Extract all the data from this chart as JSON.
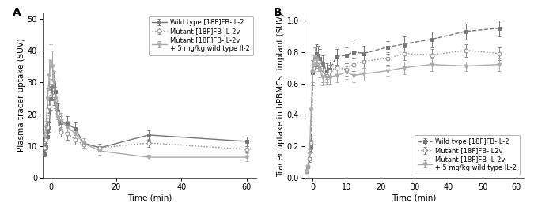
{
  "panel_A": {
    "title": "A",
    "xlabel": "Time (min)",
    "ylabel": "Plasma tracer uptake (SUV)",
    "xlim": [
      -2.5,
      63
    ],
    "ylim": [
      0,
      52
    ],
    "yticks": [
      0,
      10,
      20,
      30,
      40,
      50
    ],
    "xticks": [
      0,
      20,
      40,
      60
    ],
    "series": [
      {
        "label": "Wild type [18F]FB-IL-2",
        "linestyle": "-",
        "marker": "s",
        "fillstyle": "full",
        "color": "#777777",
        "x": [
          -2.0,
          -1.5,
          -1.0,
          -0.5,
          0.0,
          0.5,
          1.0,
          1.5,
          2.0,
          3.0,
          5.0,
          7.5,
          10.0,
          15.0,
          30.0,
          60.0
        ],
        "y": [
          7.5,
          10.0,
          13.0,
          16.0,
          25.0,
          30.0,
          29.0,
          27.0,
          21.0,
          17.5,
          17.0,
          15.5,
          11.0,
          9.5,
          13.5,
          11.5
        ],
        "yerr": [
          0.8,
          1.0,
          1.2,
          1.5,
          3.5,
          5.0,
          4.5,
          3.5,
          2.5,
          2.0,
          2.5,
          2.0,
          1.5,
          1.2,
          1.5,
          1.5
        ]
      },
      {
        "label": "Mutant [18F]FB-IL-2v",
        "linestyle": ":",
        "marker": "o",
        "fillstyle": "none",
        "color": "#888888",
        "x": [
          -2.0,
          -1.5,
          -1.0,
          -0.5,
          0.0,
          0.5,
          1.0,
          1.5,
          2.0,
          3.0,
          5.0,
          7.5,
          10.0,
          15.0,
          30.0,
          60.0
        ],
        "y": [
          9.5,
          12.0,
          16.0,
          22.5,
          30.0,
          30.0,
          26.0,
          24.5,
          20.5,
          14.5,
          14.0,
          12.0,
          10.5,
          9.5,
          11.0,
          9.0
        ],
        "yerr": [
          0.8,
          1.0,
          1.5,
          2.0,
          3.0,
          4.0,
          3.0,
          2.5,
          2.0,
          1.5,
          2.0,
          1.5,
          1.2,
          1.0,
          1.2,
          1.0
        ]
      },
      {
        "label": "Mutant [18F]FB-IL-2v\n+ 5 mg/kg wild type Il-2",
        "linestyle": "-",
        "marker": "v",
        "fillstyle": "full",
        "color": "#aaaaaa",
        "x": [
          -2.0,
          -1.5,
          -1.0,
          -0.5,
          0.0,
          0.5,
          1.0,
          1.5,
          2.0,
          3.0,
          5.0,
          7.5,
          10.0,
          15.0,
          30.0,
          60.0
        ],
        "y": [
          13.0,
          16.0,
          25.0,
          32.0,
          36.5,
          35.0,
          30.0,
          25.0,
          19.0,
          18.0,
          16.0,
          14.0,
          11.0,
          8.5,
          6.5,
          6.5
        ],
        "yerr": [
          1.5,
          2.0,
          3.0,
          4.5,
          5.5,
          5.0,
          4.0,
          3.5,
          2.5,
          2.5,
          2.0,
          2.0,
          1.5,
          1.2,
          0.8,
          1.2
        ]
      }
    ]
  },
  "panel_B": {
    "title": "B",
    "xlabel": "Time (min)",
    "ylabel": "Tracer uptake in hPBMCs  implant (SUV)",
    "xlim": [
      -2.5,
      62
    ],
    "ylim": [
      0.0,
      1.05
    ],
    "yticks": [
      0.0,
      0.2,
      0.4,
      0.6,
      0.8,
      1.0
    ],
    "xticks": [
      0,
      10,
      20,
      30,
      40,
      50,
      60
    ],
    "series": [
      {
        "label": "Wild type [18F]FB-IL-2",
        "linestyle": "--",
        "marker": "s",
        "fillstyle": "full",
        "color": "#777777",
        "x": [
          -2.0,
          -1.5,
          -1.0,
          -0.5,
          0.0,
          0.5,
          1.0,
          1.5,
          2.0,
          3.0,
          4.0,
          5.0,
          7.0,
          10.0,
          12.0,
          15.0,
          22.0,
          27.0,
          35.0,
          45.0,
          55.0
        ],
        "y": [
          0.04,
          0.07,
          0.12,
          0.2,
          0.67,
          0.76,
          0.79,
          0.78,
          0.76,
          0.73,
          0.68,
          0.69,
          0.77,
          0.78,
          0.8,
          0.79,
          0.83,
          0.85,
          0.88,
          0.93,
          0.95
        ],
        "yerr": [
          0.01,
          0.01,
          0.02,
          0.04,
          0.08,
          0.07,
          0.06,
          0.06,
          0.06,
          0.05,
          0.05,
          0.05,
          0.05,
          0.05,
          0.06,
          0.05,
          0.04,
          0.05,
          0.05,
          0.05,
          0.05
        ]
      },
      {
        "label": "Mutant [18F]FB-IL2v",
        "linestyle": ":",
        "marker": "o",
        "fillstyle": "none",
        "color": "#888888",
        "x": [
          -2.0,
          -1.5,
          -1.0,
          -0.5,
          0.0,
          0.5,
          1.0,
          1.5,
          2.0,
          3.0,
          4.0,
          5.0,
          7.0,
          10.0,
          12.0,
          15.0,
          22.0,
          27.0,
          35.0,
          45.0,
          55.0
        ],
        "y": [
          0.04,
          0.07,
          0.12,
          0.22,
          0.68,
          0.75,
          0.76,
          0.74,
          0.72,
          0.66,
          0.65,
          0.68,
          0.7,
          0.69,
          0.72,
          0.74,
          0.76,
          0.79,
          0.78,
          0.81,
          0.79
        ],
        "yerr": [
          0.01,
          0.01,
          0.02,
          0.04,
          0.07,
          0.06,
          0.05,
          0.05,
          0.05,
          0.05,
          0.04,
          0.04,
          0.04,
          0.04,
          0.04,
          0.04,
          0.04,
          0.04,
          0.04,
          0.04,
          0.04
        ]
      },
      {
        "label": "Mutant [18F]FB-IL-2v\n+ 5 mg/kg wild type IL-2",
        "linestyle": "-",
        "marker": "v",
        "fillstyle": "full",
        "color": "#aaaaaa",
        "x": [
          -2.0,
          -1.5,
          -1.0,
          -0.5,
          0.0,
          0.5,
          1.0,
          1.5,
          2.0,
          3.0,
          4.0,
          5.0,
          7.0,
          10.0,
          12.0,
          15.0,
          22.0,
          27.0,
          35.0,
          45.0,
          55.0
        ],
        "y": [
          0.04,
          0.07,
          0.15,
          0.43,
          0.68,
          0.77,
          0.75,
          0.72,
          0.69,
          0.64,
          0.64,
          0.64,
          0.65,
          0.67,
          0.65,
          0.66,
          0.68,
          0.7,
          0.72,
          0.71,
          0.72
        ],
        "yerr": [
          0.01,
          0.01,
          0.03,
          0.07,
          0.07,
          0.06,
          0.05,
          0.04,
          0.05,
          0.05,
          0.04,
          0.04,
          0.04,
          0.04,
          0.04,
          0.04,
          0.03,
          0.04,
          0.04,
          0.03,
          0.04
        ]
      }
    ]
  },
  "figure_bg": "#ffffff",
  "axes_bg": "#ffffff",
  "spine_color": "#555555",
  "tick_color": "#000000",
  "label_color": "#000000",
  "legend_fontsize": 6.0,
  "axis_label_fontsize": 7.5,
  "tick_fontsize": 7,
  "markersize": 3.5,
  "linewidth": 1.0,
  "elinewidth": 0.7,
  "capsize": 1.5
}
